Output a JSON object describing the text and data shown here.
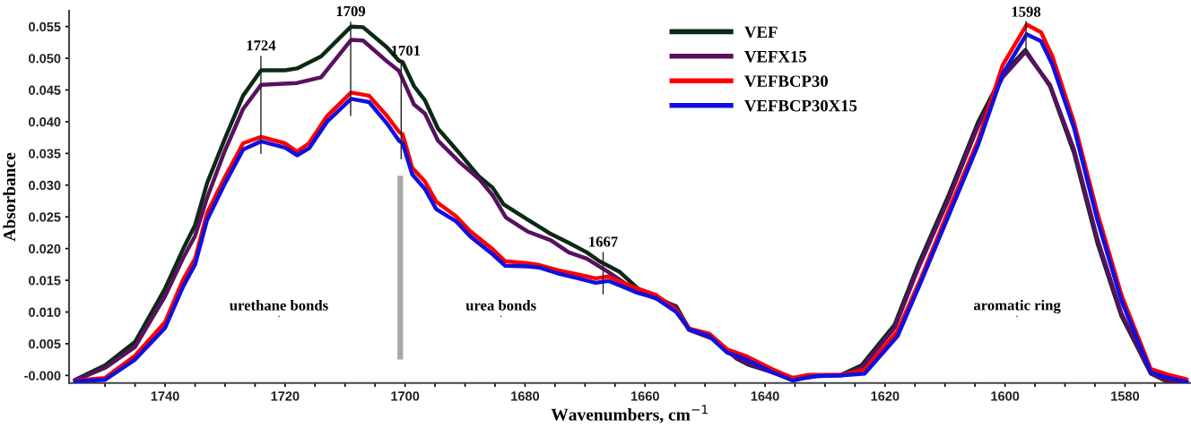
{
  "chart_data": {
    "type": "line",
    "xlabel": "Wavenumbers, cm$^{−1}$",
    "ylabel": "Absorbance",
    "xlim": [
      1756,
      1569
    ],
    "ylim": [
      -0.0012,
      0.0575
    ],
    "xticks": [
      {
        "value": 1750,
        "label": null
      },
      {
        "value": 1745,
        "label": null
      },
      1740,
      {
        "value": 1735,
        "label": null
      },
      {
        "value": 1730,
        "label": null
      },
      {
        "value": 1725,
        "label": null
      },
      1720,
      {
        "value": 1715,
        "label": null
      },
      {
        "value": 1710,
        "label": null
      },
      {
        "value": 1705,
        "label": null
      },
      1700,
      {
        "value": 1695,
        "label": null
      },
      {
        "value": 1690,
        "label": null
      },
      {
        "value": 1685,
        "label": null
      },
      1680,
      {
        "value": 1675,
        "label": null
      },
      {
        "value": 1670,
        "label": null
      },
      {
        "value": 1665,
        "label": null
      },
      1660,
      {
        "value": 1655,
        "label": null
      },
      {
        "value": 1650,
        "label": null
      },
      {
        "value": 1645,
        "label": null
      },
      1640,
      {
        "value": 1635,
        "label": null
      },
      {
        "value": 1630,
        "label": null
      },
      {
        "value": 1625,
        "label": null
      },
      1620,
      {
        "value": 1615,
        "label": null
      },
      {
        "value": 1610,
        "label": null
      },
      {
        "value": 1605,
        "label": null
      },
      1600,
      {
        "value": 1595,
        "label": null
      },
      {
        "value": 1590,
        "label": null
      },
      {
        "value": 1585,
        "label": null
      },
      1580,
      {
        "value": 1575,
        "label": null
      }
    ],
    "yticks": [
      {
        "value": 0,
        "label": "-0.000"
      },
      {
        "value": 0.005,
        "label": "0.005"
      },
      {
        "value": 0.01,
        "label": "0.010"
      },
      {
        "value": 0.015,
        "label": "0.015"
      },
      {
        "value": 0.02,
        "label": "0.020"
      },
      {
        "value": 0.025,
        "label": "0.025"
      },
      {
        "value": 0.03,
        "label": "0.030"
      },
      {
        "value": 0.035,
        "label": "0.035"
      },
      {
        "value": 0.04,
        "label": "0.040"
      },
      {
        "value": 0.045,
        "label": "0.045"
      },
      {
        "value": 0.05,
        "label": "0.050"
      },
      {
        "value": 0.055,
        "label": "0.055"
      }
    ],
    "grid": false,
    "legend": "top",
    "marker": "none",
    "line_style": "solid",
    "annotations": [
      "1724",
      "1709",
      "1701",
      "1667",
      {
        "text": "1598",
        "x": 1596.5,
        "y": 0.0513
      },
      "urethane bonds",
      "urea bonds",
      "aromatic ring"
    ],
    "series": [
      {
        "name": "VEF",
        "color": "#0a2a14",
        "x": [
          1755,
          1750,
          1745,
          1740,
          1737,
          1735,
          1733,
          1730,
          1727,
          1724,
          1720,
          1718,
          1714,
          1709,
          1707,
          1703,
          1701,
          1700.4,
          1698.5,
          1696.7,
          1694.5,
          1691,
          1687.6,
          1685.4,
          1683.6,
          1679.6,
          1675.7,
          1672.7,
          1669.7,
          1667.6,
          1664.2,
          1661.2,
          1659.7,
          1654.8,
          1652.7,
          1648.8,
          1644.8,
          1642.8,
          1635.4,
          1631.3,
          1627.3,
          1623.9,
          1618.4,
          1614.5,
          1609.4,
          1604.5,
          1600.4,
          1596.6,
          1592.5,
          1588.5,
          1584.6,
          1580.6,
          1575.7,
          1573.1,
          1569.7
        ],
        "values": [
          -0.0007,
          0.0016,
          0.0053,
          0.0137,
          0.0199,
          0.0237,
          0.0303,
          0.0374,
          0.0441,
          0.0481,
          0.0481,
          0.0484,
          0.0503,
          0.055,
          0.0549,
          0.0517,
          0.0496,
          0.0494,
          0.0456,
          0.0434,
          0.0389,
          0.0351,
          0.0313,
          0.0296,
          0.027,
          0.0246,
          0.0223,
          0.0209,
          0.0194,
          0.018,
          0.0163,
          0.0137,
          0.0127,
          0.0109,
          0.0074,
          0.006,
          0.0027,
          0.0017,
          -0.0004,
          0.0,
          0.0001,
          0.0016,
          0.008,
          0.0174,
          0.0284,
          0.0399,
          0.0474,
          0.0513,
          0.0456,
          0.0351,
          0.0209,
          0.0094,
          0.0003,
          -0.0009,
          -0.0011
        ]
      },
      {
        "name": "VEFX15",
        "color": "#5a1060",
        "x": [
          1755,
          1750,
          1745,
          1740,
          1737,
          1735,
          1733,
          1730,
          1727,
          1724,
          1718,
          1714,
          1709,
          1707,
          1703,
          1701,
          1698.5,
          1696.7,
          1694.5,
          1691,
          1687.6,
          1685.4,
          1683.2,
          1679.6,
          1675.7,
          1672.7,
          1669.7,
          1666.1,
          1662.7,
          1661,
          1658.2,
          1654.8,
          1652.7,
          1648.8,
          1644.8,
          1642.8,
          1635.4,
          1631.3,
          1627.3,
          1623.9,
          1618.4,
          1614.5,
          1609.4,
          1604.5,
          1600.4,
          1596.6,
          1592.5,
          1588.5,
          1584.6,
          1580.6,
          1575.7,
          1573.1,
          1569.7
        ],
        "values": [
          -0.0008,
          0.0012,
          0.0045,
          0.0125,
          0.0185,
          0.022,
          0.028,
          0.0355,
          0.042,
          0.0458,
          0.0461,
          0.047,
          0.0529,
          0.0528,
          0.0495,
          0.048,
          0.0427,
          0.0413,
          0.037,
          0.0337,
          0.0309,
          0.0284,
          0.0249,
          0.0227,
          0.0213,
          0.0194,
          0.0184,
          0.0163,
          0.0141,
          0.0135,
          0.0125,
          0.0107,
          0.0072,
          0.0058,
          0.0028,
          0.0018,
          -0.0006,
          -0.0001,
          0.0,
          0.0012,
          0.0075,
          0.0168,
          0.0278,
          0.0393,
          0.047,
          0.051,
          0.0458,
          0.0356,
          0.0215,
          0.0098,
          0.0004,
          -0.0008,
          -0.001
        ]
      },
      {
        "name": "VEFBCP30",
        "color": "#ff0000",
        "x": [
          1755,
          1750,
          1745,
          1740,
          1737,
          1735,
          1733,
          1730,
          1727,
          1724,
          1720,
          1718,
          1716,
          1713,
          1709,
          1706,
          1703,
          1701,
          1700.4,
          1698.8,
          1696.7,
          1694.8,
          1691.5,
          1689.1,
          1685.4,
          1683.3,
          1679.6,
          1677.6,
          1674.6,
          1671.6,
          1668.2,
          1666.1,
          1663.7,
          1661.2,
          1658.2,
          1654.8,
          1652.7,
          1649.3,
          1646.3,
          1643.3,
          1638.8,
          1635.4,
          1632.8,
          1631.3,
          1627.3,
          1623.4,
          1617.9,
          1613.9,
          1609.4,
          1604.5,
          1600.4,
          1596.4,
          1594,
          1592.1,
          1588.5,
          1584.6,
          1580.6,
          1575.7,
          1572.7,
          1569.7
        ],
        "values": [
          -0.0008,
          -0.0004,
          0.0031,
          0.0084,
          0.0151,
          0.0184,
          0.0256,
          0.0313,
          0.0366,
          0.0376,
          0.0366,
          0.0353,
          0.0366,
          0.0409,
          0.0446,
          0.0441,
          0.0409,
          0.0384,
          0.038,
          0.0327,
          0.0306,
          0.0274,
          0.0251,
          0.0227,
          0.0199,
          0.018,
          0.0177,
          0.0174,
          0.0166,
          0.016,
          0.0153,
          0.0156,
          0.0146,
          0.0137,
          0.0127,
          0.0103,
          0.0074,
          0.0066,
          0.0041,
          0.0031,
          0.001,
          -0.0004,
          0.0001,
          0.0001,
          0.0001,
          0.0009,
          0.007,
          0.0156,
          0.026,
          0.037,
          0.0489,
          0.0553,
          0.0541,
          0.0503,
          0.0399,
          0.0256,
          0.0127,
          0.001,
          0.0001,
          -0.0006
        ]
      },
      {
        "name": "VEFBCP30X15",
        "color": "#1010e0",
        "x": [
          1755,
          1750,
          1745,
          1740,
          1737,
          1735,
          1733,
          1730,
          1727,
          1724,
          1720,
          1718,
          1716,
          1713,
          1709,
          1706,
          1703,
          1701,
          1700.4,
          1698.8,
          1696.7,
          1694.8,
          1691.5,
          1689.1,
          1685.4,
          1683.3,
          1679.6,
          1677.6,
          1674.6,
          1671.6,
          1668.2,
          1666.1,
          1663.7,
          1661.2,
          1658.2,
          1654.8,
          1652.7,
          1649.3,
          1646.3,
          1643.3,
          1638.8,
          1635.4,
          1632.8,
          1631.3,
          1627.3,
          1623.4,
          1617.9,
          1613.9,
          1609.4,
          1604.5,
          1600.4,
          1596.4,
          1594,
          1592.1,
          1588.5,
          1584.6,
          1580.6,
          1575.7,
          1572.7,
          1569.7
        ],
        "values": [
          -0.0009,
          -0.0007,
          0.0025,
          0.0075,
          0.014,
          0.0175,
          0.0245,
          0.0303,
          0.0356,
          0.0369,
          0.0359,
          0.0347,
          0.0358,
          0.04,
          0.0436,
          0.0431,
          0.0397,
          0.037,
          0.0366,
          0.0317,
          0.0294,
          0.0262,
          0.0243,
          0.0219,
          0.0191,
          0.0173,
          0.0172,
          0.017,
          0.0161,
          0.0154,
          0.0146,
          0.0149,
          0.014,
          0.013,
          0.0122,
          0.01,
          0.0073,
          0.0062,
          0.0036,
          0.0026,
          0.0005,
          -0.0008,
          -0.0003,
          -0.0001,
          0.0,
          0.0003,
          0.0062,
          0.015,
          0.0252,
          0.0363,
          0.0475,
          0.0538,
          0.0527,
          0.049,
          0.039,
          0.0245,
          0.0118,
          0.0005,
          -0.0004,
          -0.001
        ]
      },
      {
        "color": "#a8a8a8",
        "x": [
          1700.8,
          1700.8
        ],
        "values": [
          0.0315,
          0.0025
        ]
      }
    ]
  }
}
